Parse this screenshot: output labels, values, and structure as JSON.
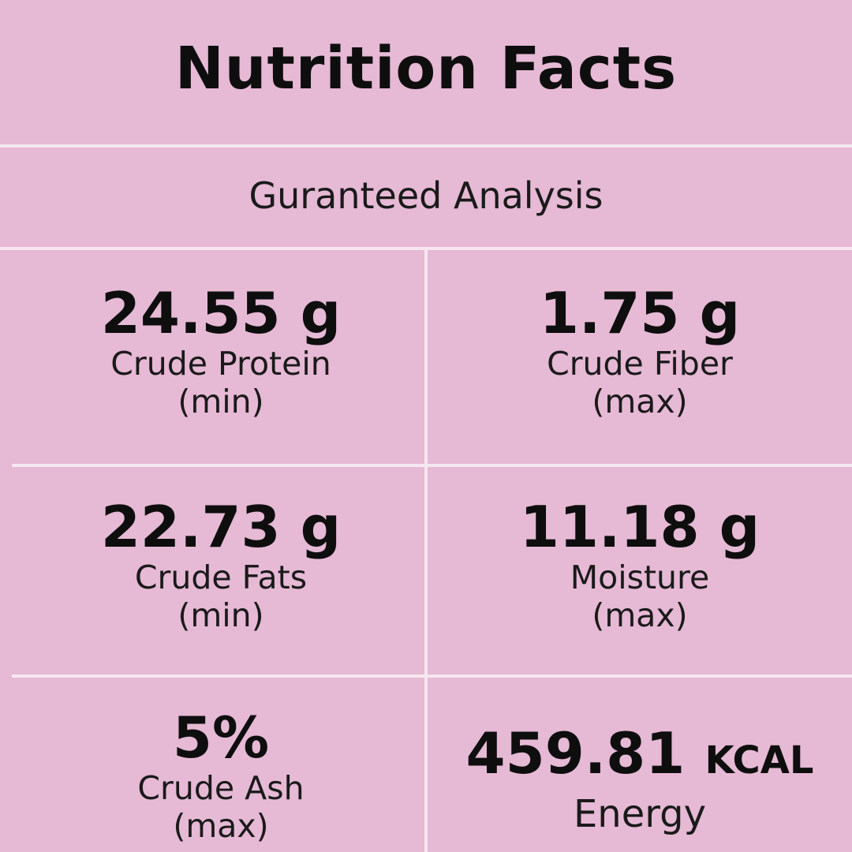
{
  "header": {
    "title": "Nutrition Facts",
    "subtitle": "Guranteed Analysis"
  },
  "grid": {
    "items": [
      {
        "value": "24.55 g",
        "label": "Crude Protein",
        "qualifier": "(min)"
      },
      {
        "value": "1.75 g",
        "label": "Crude Fiber",
        "qualifier": "(max)"
      },
      {
        "value": "22.73 g",
        "label": "Crude Fats",
        "qualifier": "(min)"
      },
      {
        "value": "11.18 g",
        "label": "Moisture",
        "qualifier": "(max)"
      },
      {
        "value": "5%",
        "label": "Crude Ash",
        "qualifier": "(max)"
      },
      {
        "value": "459.81",
        "unit": "KCAL",
        "label": "Energy"
      }
    ]
  },
  "colors": {
    "background": "#e6b9d4",
    "divider": "#f6e7ef",
    "text": "#111111"
  }
}
